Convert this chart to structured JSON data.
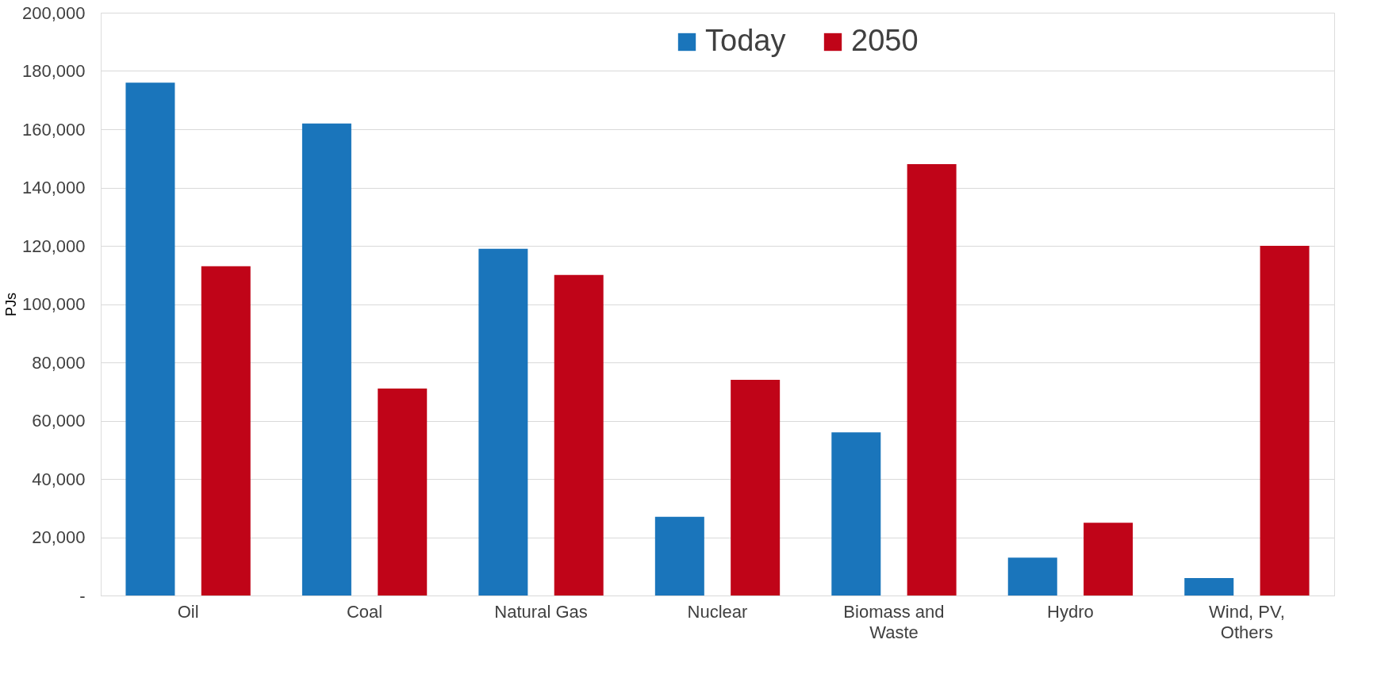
{
  "chart_data": {
    "type": "bar",
    "categories": [
      "Oil",
      "Coal",
      "Natural Gas",
      "Nuclear",
      "Biomass and Waste",
      "Hydro",
      "Wind, PV, Others"
    ],
    "ylabel": "PJs",
    "series": [
      {
        "name": "Today",
        "color": "#1a75bb",
        "values": [
          176000,
          162000,
          119000,
          27000,
          56000,
          13000,
          6000
        ]
      },
      {
        "name": "2050",
        "color": "#c00418",
        "values": [
          113000,
          71000,
          110000,
          74000,
          148000,
          25000,
          120000
        ]
      }
    ],
    "ylim": [
      0,
      200000
    ],
    "yticks": [
      {
        "value": 0,
        "label": "-"
      },
      {
        "value": 20000,
        "label": "20,000"
      },
      {
        "value": 40000,
        "label": "40,000"
      },
      {
        "value": 60000,
        "label": "60,000"
      },
      {
        "value": 80000,
        "label": "80,000"
      },
      {
        "value": 100000,
        "label": "100,000"
      },
      {
        "value": 120000,
        "label": "120,000"
      },
      {
        "value": 140000,
        "label": "140,000"
      },
      {
        "value": 160000,
        "label": "160,000"
      },
      {
        "value": 180000,
        "label": "180,000"
      },
      {
        "value": 200000,
        "label": "200,000"
      }
    ],
    "grid": "y",
    "legend": "top"
  }
}
